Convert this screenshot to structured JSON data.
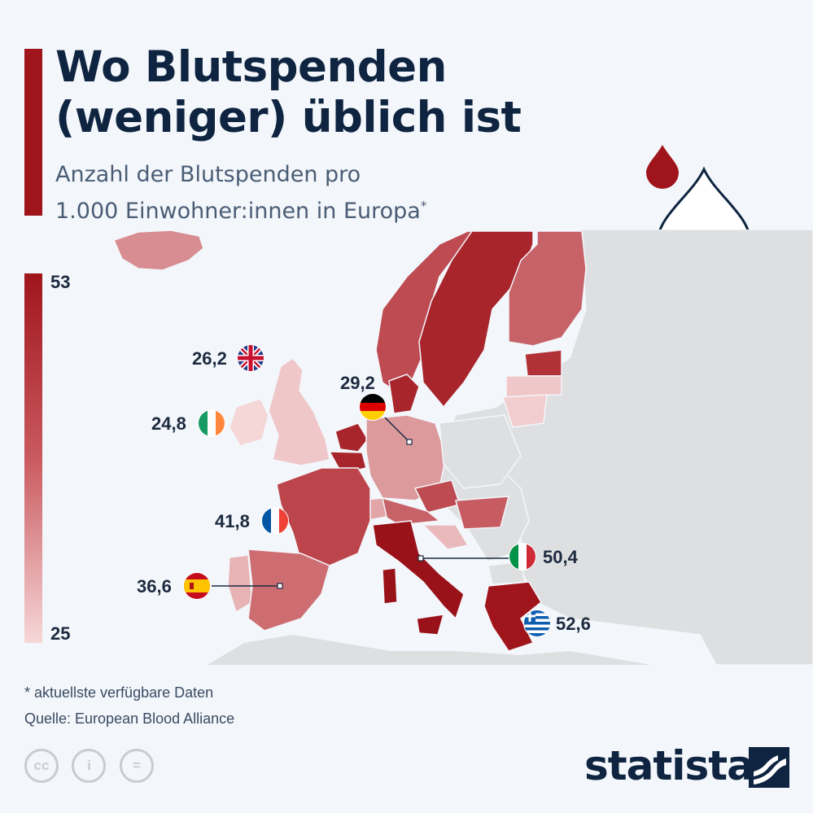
{
  "title_line1": "Wo Blutspenden",
  "title_line2": "(weniger) üblich ist",
  "subtitle_line1": "Anzahl der Blutspenden pro",
  "subtitle_line2": "1.000 Einwohner:innen in Europa",
  "subtitle_mark": "*",
  "legend": {
    "max": "53",
    "min": "25"
  },
  "countries": [
    {
      "name": "Vereinigtes Königreich",
      "label": "26,2",
      "value": 26.2,
      "flag": "uk-flag-icon"
    },
    {
      "name": "Irland",
      "label": "24,8",
      "value": 24.8,
      "flag": "ireland-flag-icon"
    },
    {
      "name": "Deutschland",
      "label": "29,2",
      "value": 29.2,
      "flag": "germany-flag-icon"
    },
    {
      "name": "Frankreich",
      "label": "41,8",
      "value": 41.8,
      "flag": "france-flag-icon"
    },
    {
      "name": "Spanien",
      "label": "36,6",
      "value": 36.6,
      "flag": "spain-flag-icon"
    },
    {
      "name": "Italien",
      "label": "50,4",
      "value": 50.4,
      "flag": "italy-flag-icon"
    },
    {
      "name": "Griechenland",
      "label": "52,6",
      "value": 52.6,
      "flag": "greece-flag-icon"
    }
  ],
  "colors": {
    "accent": "#a0151c",
    "scale_high": "#a0151c",
    "scale_low": "#f6d7d8",
    "no_data": "#dedfe1",
    "title": "#0e2440"
  },
  "footnote": "* aktuellste verfügbare Daten",
  "source": "Quelle: European Blood Alliance",
  "license_icons": [
    "cc-icon",
    "by-icon",
    "nd-icon"
  ],
  "brand": "statista"
}
